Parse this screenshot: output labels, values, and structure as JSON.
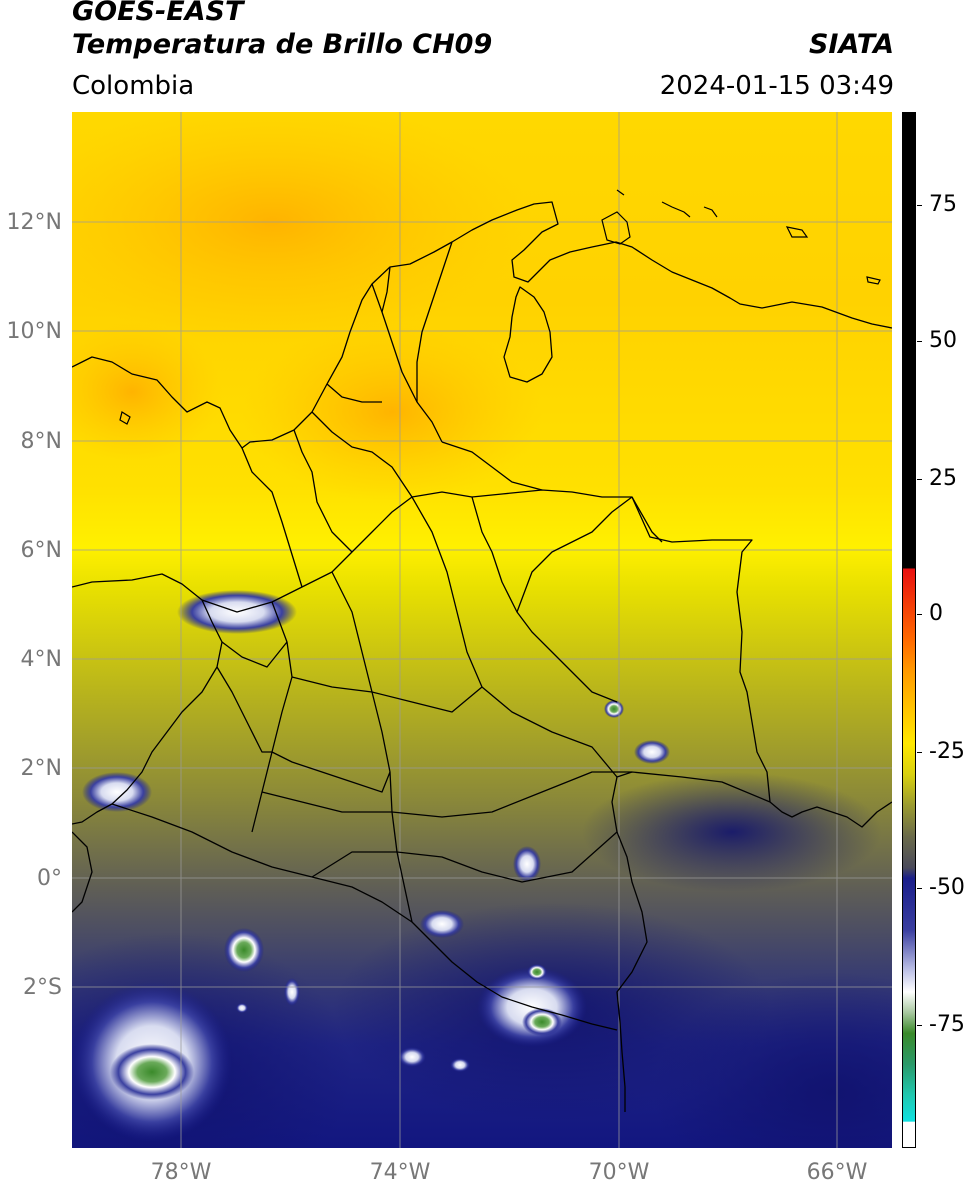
{
  "header": {
    "satellite": "GOES-EAST",
    "product": "Temperatura de Brillo CH09",
    "region": "Colombia",
    "agency": "SIATA",
    "datetime": "2024-01-15 03:49"
  },
  "map": {
    "lat_labels": [
      "12°N",
      "10°N",
      "8°N",
      "6°N",
      "4°N",
      "2°N",
      "0°",
      "2°S"
    ],
    "lon_labels": [
      "78°W",
      "74°W",
      "70°W",
      "66°W"
    ],
    "extent": {
      "lon_min": -80,
      "lon_max": -65,
      "lat_min": -5,
      "lat_max": 14
    }
  },
  "colorbar": {
    "ticks": [
      "75",
      "50",
      "25",
      "0",
      "-25",
      "-50",
      "-75"
    ],
    "range": [
      -95,
      90
    ],
    "colors": {
      "high": "#000000",
      "warm": "#e81010",
      "orange": "#ff9a00",
      "yellow": "#ffe800",
      "olive": "#8a8a3a",
      "gray": "#5a5a5a",
      "navy": "#1a1e8a",
      "white": "#ffffff",
      "green": "#3a8a2a",
      "cyan": "#10e0e0"
    }
  },
  "colors": {
    "map_yellow": "#ffd800",
    "map_orange": "#ffb400",
    "map_navy": "#121680",
    "grid": "#9a9a9a",
    "coast": "#000000"
  }
}
